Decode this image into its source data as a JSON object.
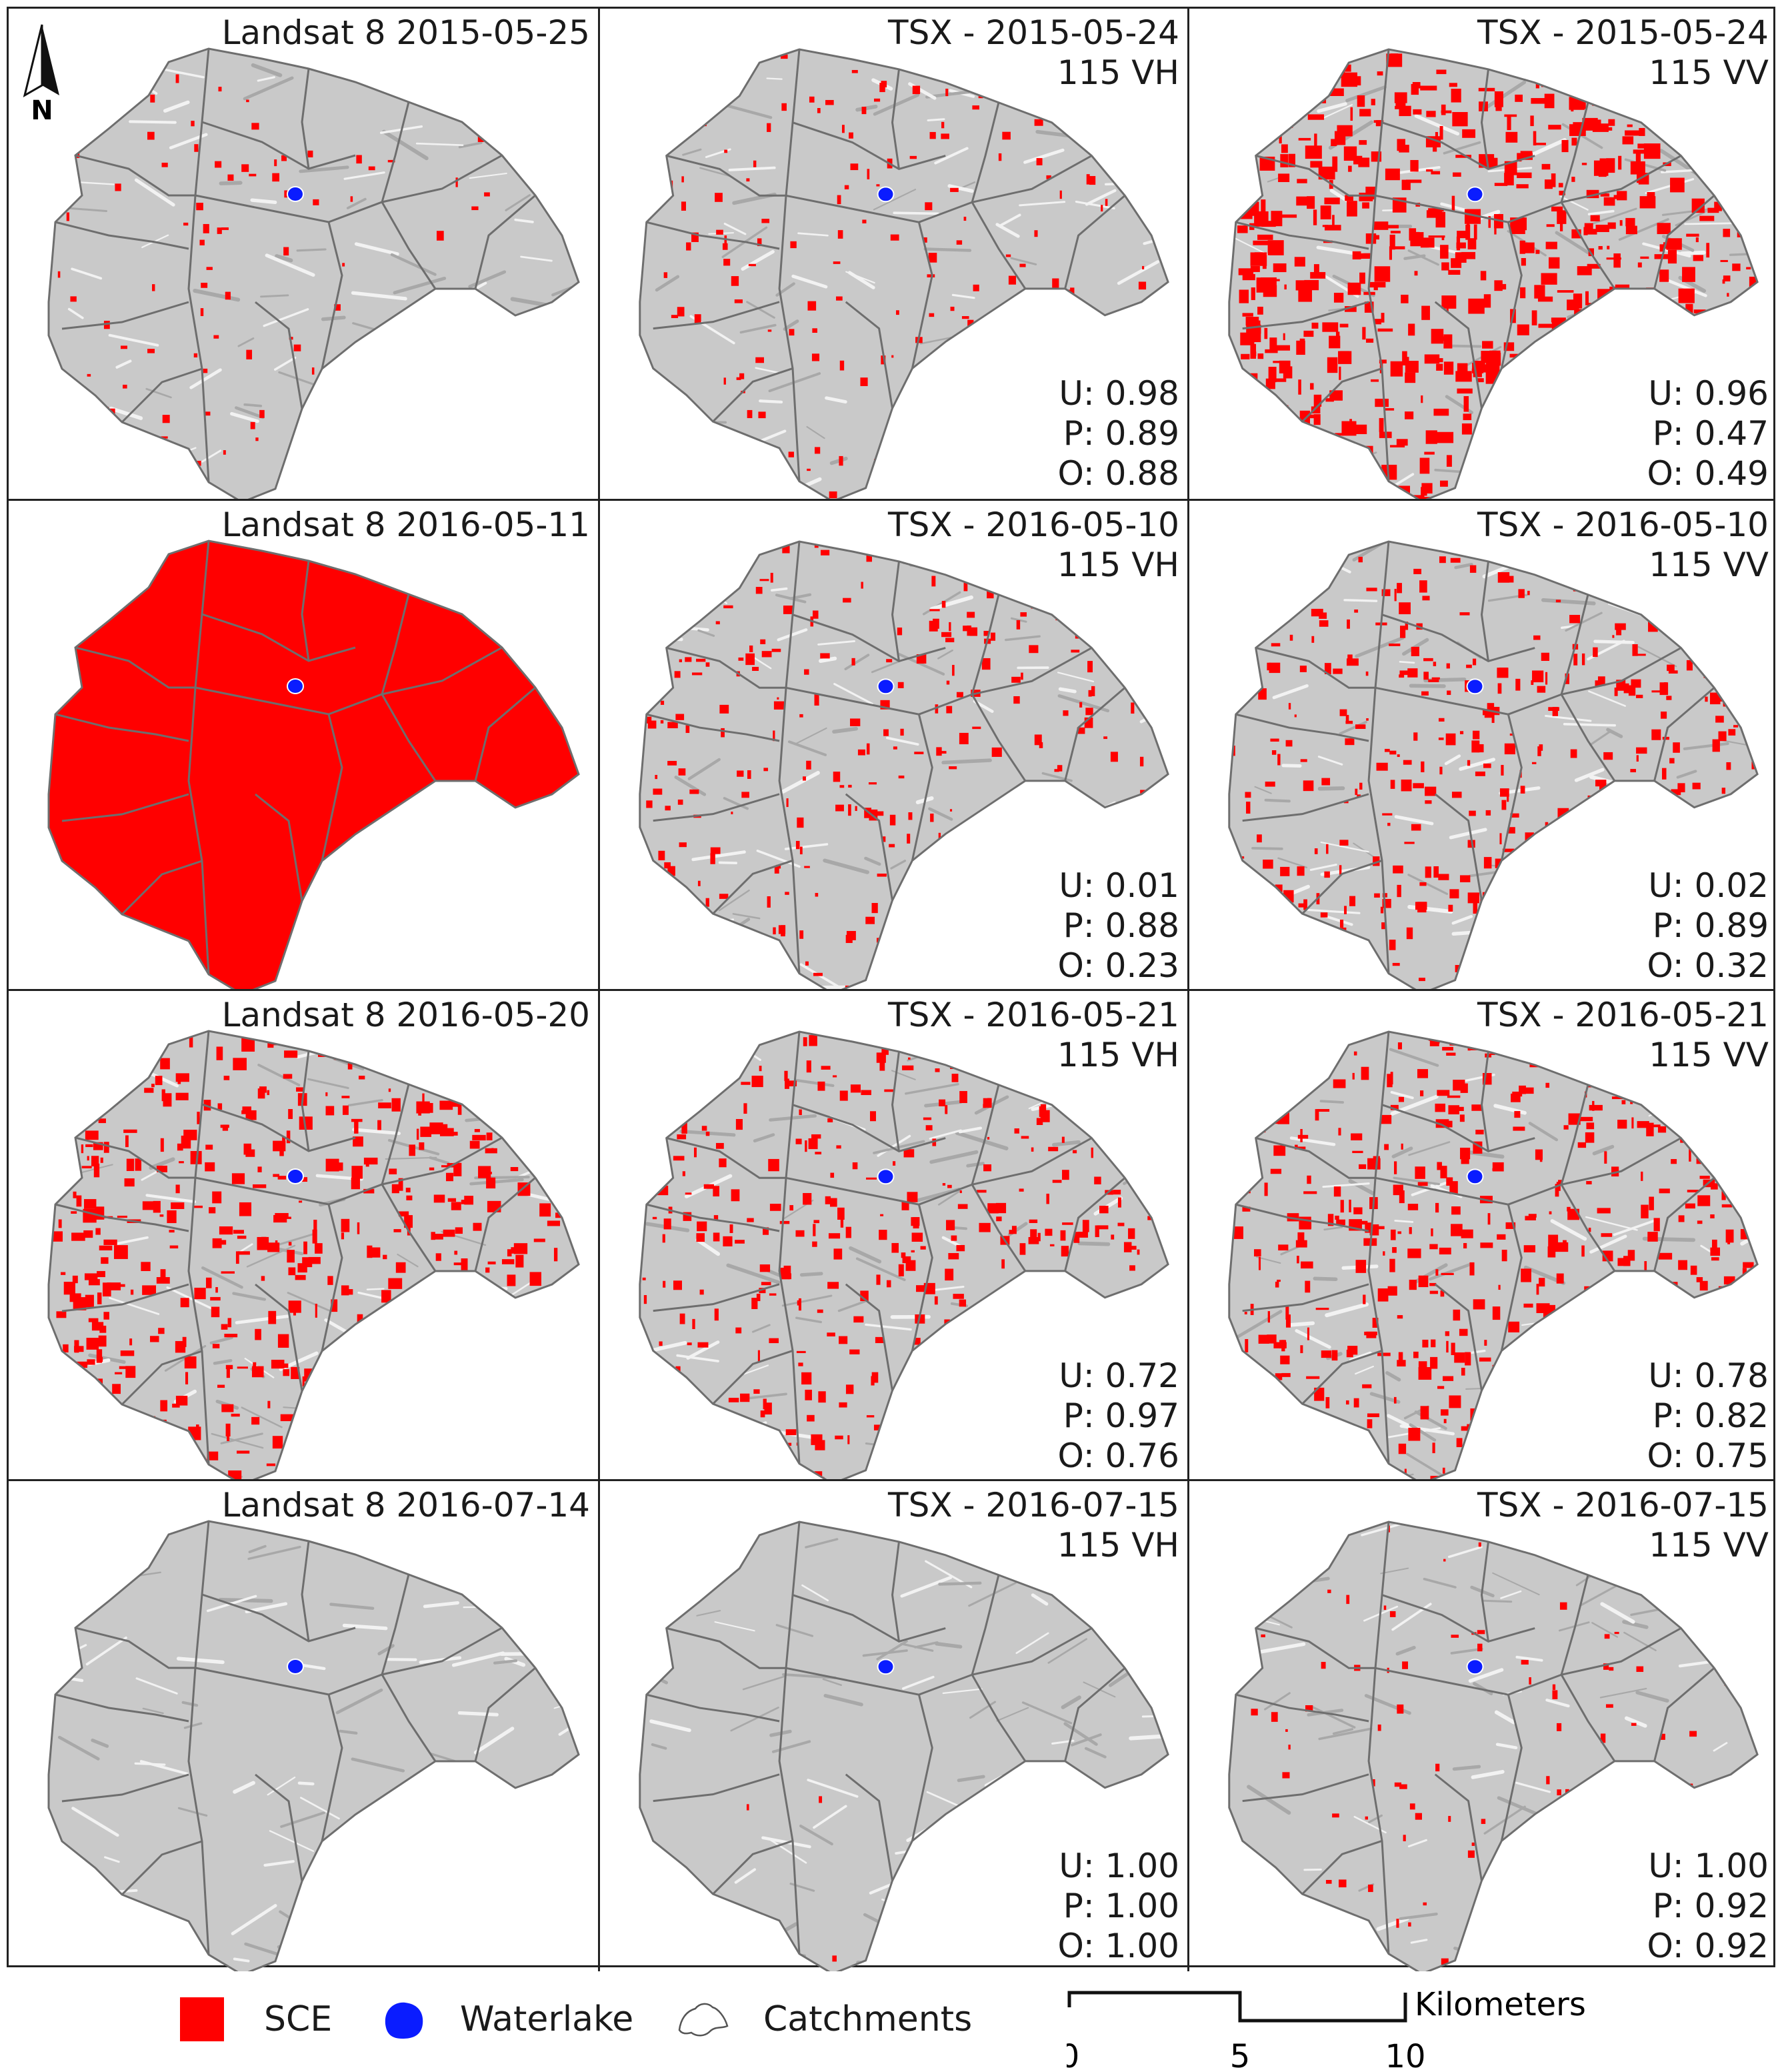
{
  "north": {
    "label": "N"
  },
  "panels": [
    [
      {
        "title": "Landsat 8  2015-05-25",
        "sub": "",
        "metrics": [],
        "sce": 0.08,
        "ambient": 1
      },
      {
        "title": "TSX - 2015-05-24",
        "sub": "115 VH",
        "metrics": [
          "U:  0.98",
          "P:  0.89",
          "O:  0.88"
        ],
        "sce": 0.14,
        "ambient": 2
      },
      {
        "title": "TSX - 2015-05-24",
        "sub": "115 VV",
        "metrics": [
          "U:  0.96",
          "P:  0.47",
          "O:  0.49"
        ],
        "sce": 0.55,
        "ambient": 3
      }
    ],
    [
      {
        "title": "Landsat 8  2016-05-11",
        "sub": "",
        "metrics": [],
        "sce": 1.0,
        "ambient": 4
      },
      {
        "title": "TSX - 2016-05-10",
        "sub": "115 VH",
        "metrics": [
          "U:  0.01",
          "P:  0.88",
          "O:  0.23"
        ],
        "sce": 0.22,
        "ambient": 5
      },
      {
        "title": "TSX - 2016-05-10",
        "sub": "115 VV",
        "metrics": [
          "U:  0.02",
          "P:  0.89",
          "O:  0.32"
        ],
        "sce": 0.3,
        "ambient": 6
      }
    ],
    [
      {
        "title": "Landsat 8  2016-05-20",
        "sub": "",
        "metrics": [],
        "sce": 0.4,
        "ambient": 7
      },
      {
        "title": "TSX - 2016-05-21",
        "sub": "115 VH",
        "metrics": [
          "U:  0.72",
          "P:  0.97",
          "O:  0.76"
        ],
        "sce": 0.28,
        "ambient": 8
      },
      {
        "title": "TSX - 2016-05-21",
        "sub": "115 VV",
        "metrics": [
          "U:  0.78",
          "P:  0.82",
          "O:  0.75"
        ],
        "sce": 0.38,
        "ambient": 9
      }
    ],
    [
      {
        "title": "Landsat 8  2016-07-14",
        "sub": "",
        "metrics": [],
        "sce": 0.0,
        "ambient": 10
      },
      {
        "title": "TSX - 2016-07-15",
        "sub": "115 VH",
        "metrics": [
          "U:  1.00",
          "P:  1.00",
          "O:  1.00"
        ],
        "sce": 0.003,
        "ambient": 11
      },
      {
        "title": "TSX - 2016-07-15",
        "sub": "115 VV",
        "metrics": [
          "U:  1.00",
          "P:  0.92",
          "O:  0.92"
        ],
        "sce": 0.09,
        "ambient": 12
      }
    ]
  ],
  "legend": {
    "sce": "SCE",
    "waterlake": "Waterlake",
    "catchments": "Catchments"
  },
  "scalebar": {
    "ticks": [
      "0",
      "5",
      "10"
    ],
    "unit": "Kilometers"
  },
  "colors": {
    "sce": "#ff0000",
    "waterlake": "#0a1cff",
    "terrain": "#c9c9c9",
    "boundary": "#6e6e6e"
  }
}
